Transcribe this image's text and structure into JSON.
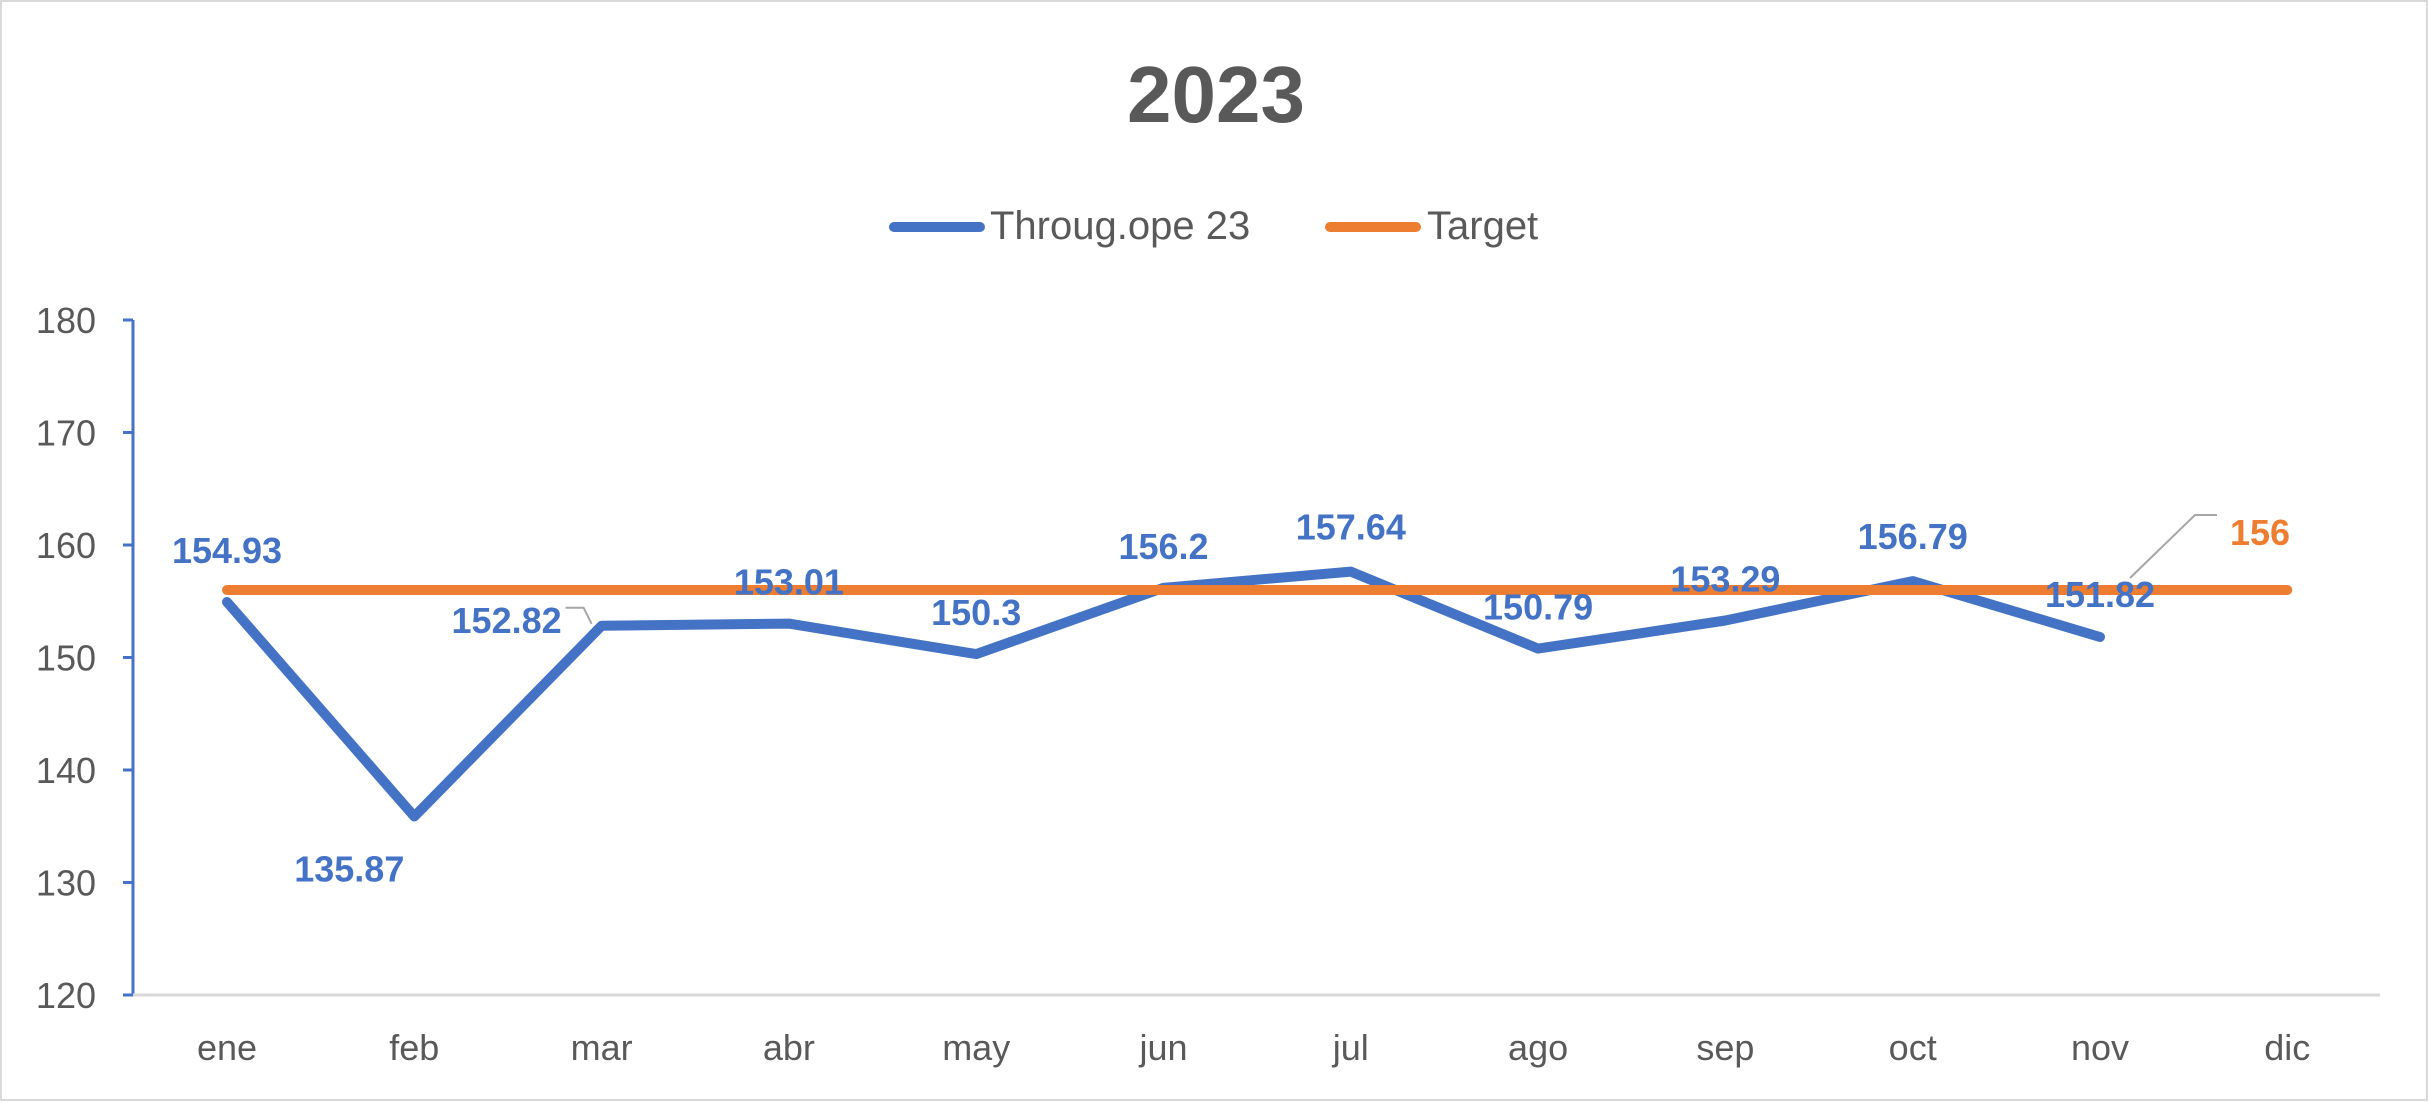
{
  "chart_data": {
    "type": "line",
    "title": "2023",
    "xlabel": "",
    "ylabel": "",
    "categories": [
      "ene",
      "feb",
      "mar",
      "abr",
      "may",
      "jun",
      "jul",
      "ago",
      "sep",
      "oct",
      "nov",
      "dic"
    ],
    "ylim": [
      120,
      180
    ],
    "yticks": [
      120,
      130,
      140,
      150,
      160,
      170,
      180
    ],
    "grid": false,
    "legend_position": "top",
    "series": [
      {
        "name": "Throug.ope 23",
        "color": "#4472C4",
        "values": [
          154.93,
          135.87,
          152.82,
          153.01,
          150.3,
          156.2,
          157.64,
          150.79,
          153.29,
          156.79,
          151.82,
          null
        ],
        "labels": [
          "154.93",
          "135.87",
          "152.82",
          "153.01",
          "150.3",
          "156.2",
          "157.64",
          "150.79",
          "153.29",
          "156.79",
          "151.82",
          ""
        ]
      },
      {
        "name": "Target",
        "color": "#ED7D31",
        "values": [
          156,
          156,
          156,
          156,
          156,
          156,
          156,
          156,
          156,
          156,
          156,
          156
        ],
        "labels": [
          "",
          "",
          "",
          "",
          "",
          "",
          "",
          "",
          "",
          "",
          "",
          "156"
        ]
      }
    ]
  }
}
